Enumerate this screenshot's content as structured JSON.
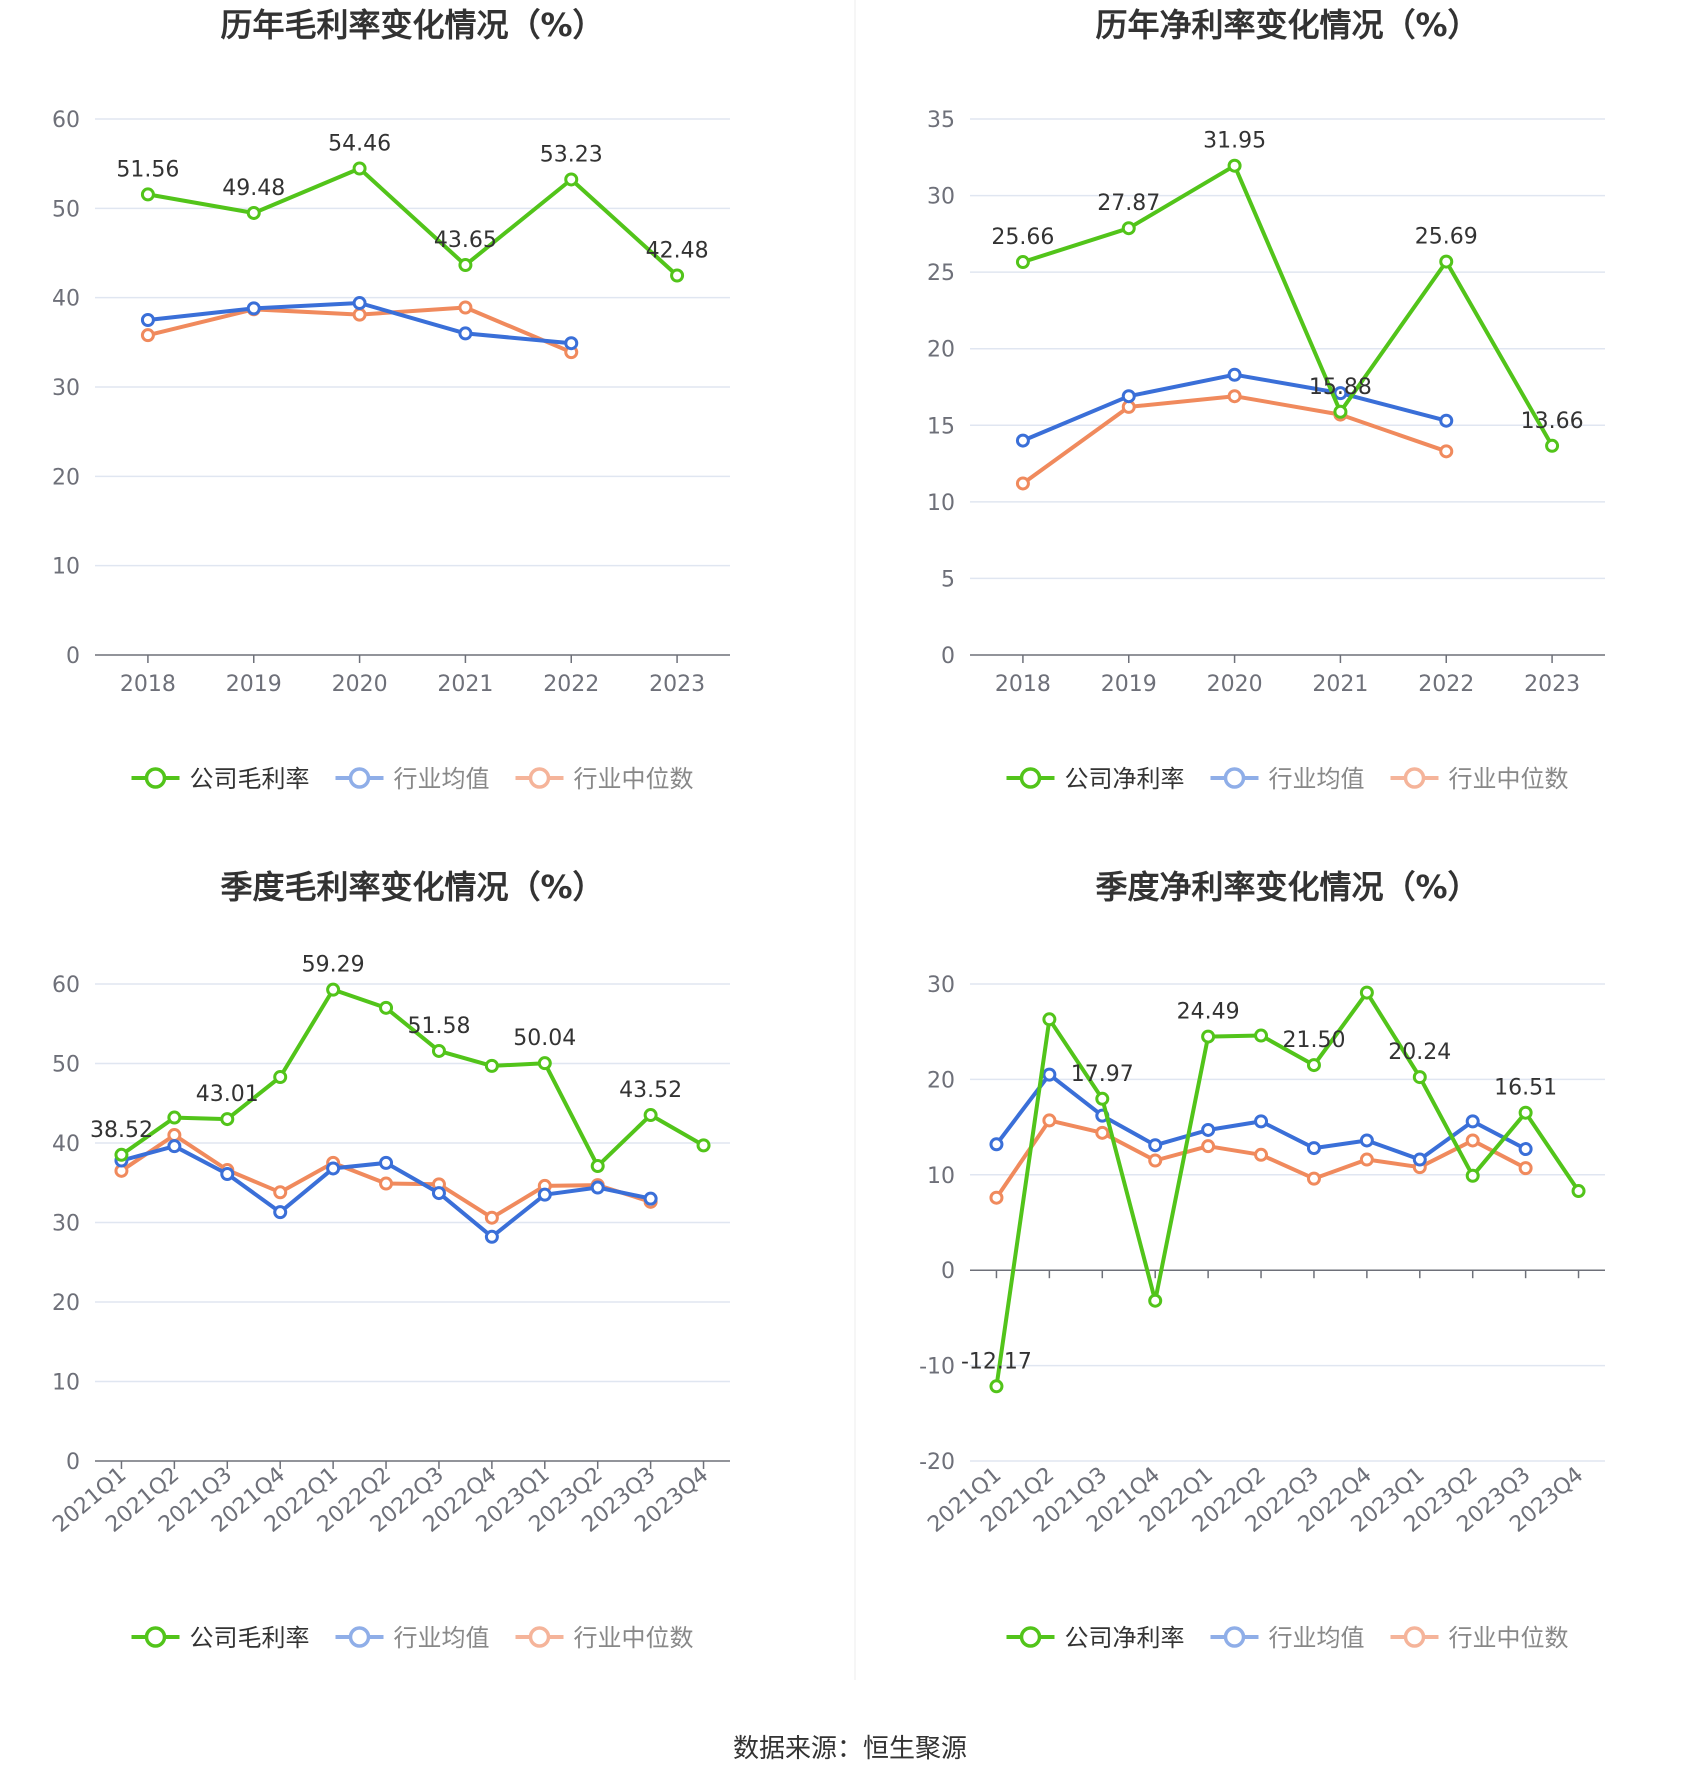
{
  "colors": {
    "company": "#52c41a",
    "industry_avg": "#3a6fd8",
    "industry_median": "#f08a5d",
    "legend_avg": "#8faee8",
    "legend_median": "#f5b49a",
    "grid": "#e0e6f1",
    "axis": "#6e7079"
  },
  "source": "数据来源：恒生聚源",
  "chart_data": [
    {
      "type": "line",
      "title": "历年毛利率变化情况（%）",
      "categories": [
        "2018",
        "2019",
        "2020",
        "2021",
        "2022",
        "2023"
      ],
      "ylim": [
        0,
        60
      ],
      "yticks": [
        0,
        10,
        20,
        30,
        40,
        50,
        60
      ],
      "grid": true,
      "legend": "bottom",
      "rotate_x_labels": false,
      "series": [
        {
          "name": "公司毛利率",
          "values": [
            51.56,
            49.48,
            54.46,
            43.65,
            53.23,
            42.48
          ],
          "labels": [
            "51.56",
            "49.48",
            "54.46",
            "43.65",
            "53.23",
            "42.48"
          ]
        },
        {
          "name": "行业均值",
          "values": [
            37.5,
            38.8,
            39.4,
            36.0,
            34.9,
            null
          ]
        },
        {
          "name": "行业中位数",
          "values": [
            35.8,
            38.7,
            38.1,
            38.9,
            33.9,
            null
          ]
        }
      ]
    },
    {
      "type": "line",
      "title": "历年净利率变化情况（%）",
      "categories": [
        "2018",
        "2019",
        "2020",
        "2021",
        "2022",
        "2023"
      ],
      "ylim": [
        0,
        35
      ],
      "yticks": [
        0,
        5,
        10,
        15,
        20,
        25,
        30,
        35
      ],
      "grid": true,
      "legend": "bottom",
      "rotate_x_labels": false,
      "series": [
        {
          "name": "公司净利率",
          "values": [
            25.66,
            27.87,
            31.95,
            15.88,
            25.69,
            13.66
          ],
          "labels": [
            "25.66",
            "27.87",
            "31.95",
            "15.88",
            "25.69",
            "13.66"
          ]
        },
        {
          "name": "行业均值",
          "values": [
            14.0,
            16.9,
            18.3,
            17.1,
            15.3,
            null
          ]
        },
        {
          "name": "行业中位数",
          "values": [
            11.2,
            16.2,
            16.9,
            15.7,
            13.3,
            null
          ]
        }
      ]
    },
    {
      "type": "line",
      "title": "季度毛利率变化情况（%）",
      "categories": [
        "2021Q1",
        "2021Q2",
        "2021Q3",
        "2021Q4",
        "2022Q1",
        "2022Q2",
        "2022Q3",
        "2022Q4",
        "2023Q1",
        "2023Q2",
        "2023Q3",
        "2023Q4"
      ],
      "ylim": [
        0,
        60
      ],
      "yticks": [
        0,
        10,
        20,
        30,
        40,
        50,
        60
      ],
      "grid": true,
      "legend": "bottom",
      "rotate_x_labels": true,
      "series": [
        {
          "name": "公司毛利率",
          "values": [
            38.52,
            43.2,
            43.01,
            48.3,
            59.29,
            57.0,
            51.58,
            49.7,
            50.04,
            37.1,
            43.52,
            39.7
          ],
          "labels": [
            "38.52",
            "",
            "43.01",
            "",
            "59.29",
            "",
            "51.58",
            "",
            "50.04",
            "",
            "43.52",
            ""
          ]
        },
        {
          "name": "行业均值",
          "values": [
            37.8,
            39.6,
            36.1,
            31.3,
            36.8,
            37.5,
            33.7,
            28.2,
            33.5,
            34.4,
            33.0,
            null
          ]
        },
        {
          "name": "行业中位数",
          "values": [
            36.5,
            41.0,
            36.6,
            33.8,
            37.5,
            34.9,
            34.8,
            30.6,
            34.6,
            34.7,
            32.6,
            null
          ]
        }
      ]
    },
    {
      "type": "line",
      "title": "季度净利率变化情况（%）",
      "categories": [
        "2021Q1",
        "2021Q2",
        "2021Q3",
        "2021Q4",
        "2022Q1",
        "2022Q2",
        "2022Q3",
        "2022Q4",
        "2023Q1",
        "2023Q2",
        "2023Q3",
        "2023Q4"
      ],
      "ylim": [
        -20,
        30
      ],
      "yticks": [
        -20,
        -10,
        0,
        10,
        20,
        30
      ],
      "grid": true,
      "legend": "bottom",
      "rotate_x_labels": true,
      "series": [
        {
          "name": "公司净利率",
          "values": [
            -12.17,
            26.3,
            17.97,
            -3.2,
            24.49,
            24.6,
            21.5,
            29.1,
            20.24,
            9.9,
            16.51,
            8.3
          ],
          "labels": [
            "-12.17",
            "",
            "17.97",
            "",
            "24.49",
            "",
            "21.50",
            "",
            "20.24",
            "",
            "16.51",
            ""
          ]
        },
        {
          "name": "行业均值",
          "values": [
            13.2,
            20.5,
            16.2,
            13.1,
            14.7,
            15.6,
            12.8,
            13.6,
            11.6,
            15.6,
            12.7,
            null
          ]
        },
        {
          "name": "行业中位数",
          "values": [
            7.6,
            15.7,
            14.4,
            11.5,
            13.0,
            12.1,
            9.6,
            11.6,
            10.8,
            13.6,
            10.7,
            null
          ]
        }
      ]
    }
  ]
}
